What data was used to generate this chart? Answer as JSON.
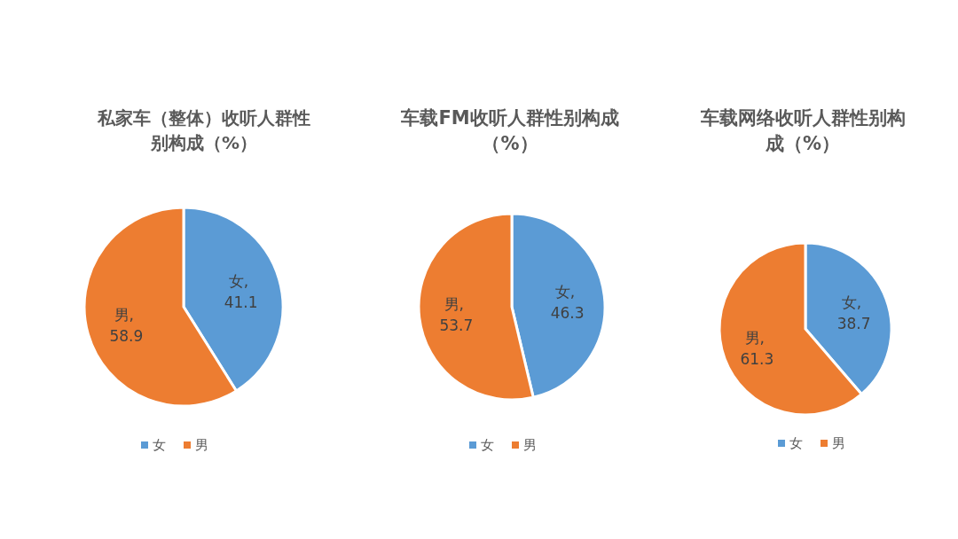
{
  "chart_data": [
    {
      "type": "pie",
      "title": "私家车（整体）收听人群性别构成（%）",
      "categories": [
        "女",
        "男"
      ],
      "values": [
        41.1,
        58.9
      ],
      "value_labels": [
        "女, 41.1",
        "男, 58.9"
      ],
      "colors": [
        "#5b9bd5",
        "#ed7d31"
      ],
      "legend": "bottom"
    },
    {
      "type": "pie",
      "title": "车载FM收听人群性别构成（%）",
      "categories": [
        "女",
        "男"
      ],
      "values": [
        46.3,
        53.7
      ],
      "value_labels": [
        "女, 46.3",
        "男, 53.7"
      ],
      "colors": [
        "#5b9bd5",
        "#ed7d31"
      ],
      "legend": "bottom"
    },
    {
      "type": "pie",
      "title": "车载网络收听人群性别构成（%）",
      "categories": [
        "女",
        "男"
      ],
      "values": [
        38.7,
        61.3
      ],
      "value_labels": [
        "女, 38.7",
        "男, 61.3"
      ],
      "colors": [
        "#5b9bd5",
        "#ed7d31"
      ],
      "legend": "bottom"
    }
  ]
}
